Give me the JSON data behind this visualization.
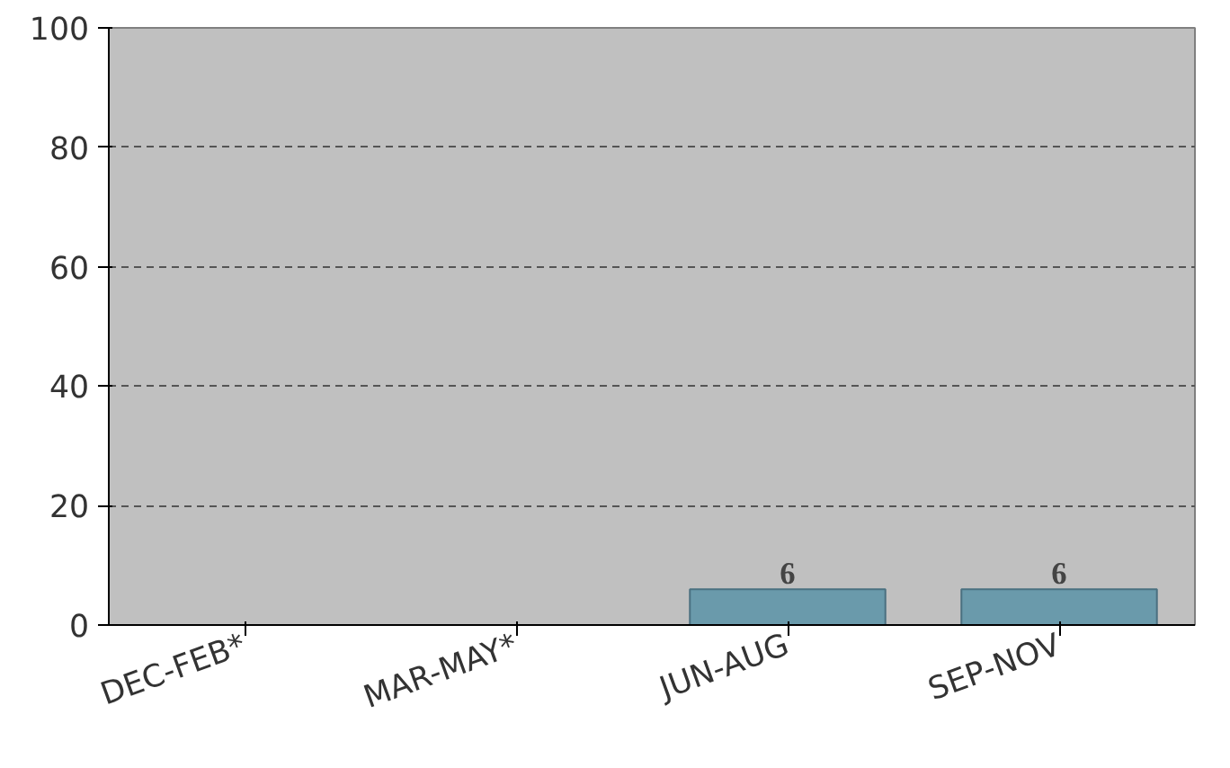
{
  "chart_data": {
    "type": "bar",
    "categories": [
      "DEC-FEB*",
      "MAR-MAY*",
      "JUN-AUG",
      "SEP-NOV"
    ],
    "values": [
      null,
      null,
      6,
      6
    ],
    "color": "#6a9aab",
    "ylim": [
      0,
      100
    ],
    "yticks": [
      0,
      20,
      40,
      60,
      80,
      100
    ],
    "grid": "y",
    "data_labels": true
  }
}
